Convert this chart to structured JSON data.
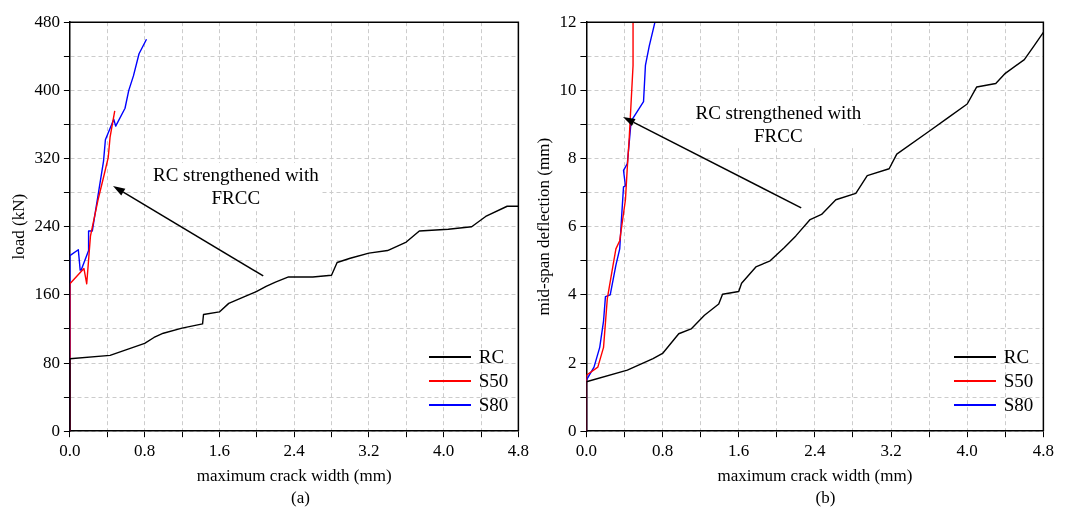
{
  "chart_data": [
    {
      "type": "line",
      "xlabel": "maximum crack width (mm)",
      "ylabel": "load (kN)",
      "annotations": [
        "RC strengthened with FRCC",
        "(a)"
      ],
      "xlim": [
        0,
        4.8
      ],
      "ylim": [
        0,
        480
      ],
      "xticks": [
        {
          "value": 0,
          "label": "0.0"
        },
        {
          "value": 0.4,
          "label": null
        },
        {
          "value": 0.8,
          "label": "0.8"
        },
        {
          "value": 1.2,
          "label": null
        },
        {
          "value": 1.6,
          "label": "1.6"
        },
        {
          "value": 2.0,
          "label": null
        },
        {
          "value": 2.4,
          "label": "2.4"
        },
        {
          "value": 2.8,
          "label": null
        },
        {
          "value": 3.2,
          "label": "3.2"
        },
        {
          "value": 3.6,
          "label": null
        },
        {
          "value": 4.0,
          "label": "4.0"
        },
        {
          "value": 4.4,
          "label": null
        },
        {
          "value": 4.8,
          "label": "4.8"
        }
      ],
      "yticks": [
        0,
        {
          "value": 40,
          "label": null
        },
        80,
        {
          "value": 120,
          "label": null
        },
        160,
        {
          "value": 200,
          "label": null
        },
        240,
        {
          "value": 280,
          "label": null
        },
        320,
        {
          "value": 360,
          "label": null
        },
        400,
        {
          "value": 440,
          "label": null
        },
        480
      ],
      "grid": true,
      "legend": "bottom right",
      "marker": "none",
      "line_style": "solid",
      "series": [
        {
          "name": "RC",
          "color": "#000000",
          "x": [
            0,
            0,
            0.43,
            0.8,
            0.9,
            1.0,
            1.2,
            1.42,
            1.43,
            1.6,
            1.7,
            1.85,
            2.0,
            2.1,
            2.2,
            2.34,
            2.6,
            2.8,
            2.86,
            3.0,
            3.2,
            3.4,
            3.6,
            3.74,
            4.05,
            4.3,
            4.45,
            4.68,
            4.8
          ],
          "values": [
            0,
            85,
            89,
            103,
            110,
            115,
            121,
            126,
            137,
            140,
            150,
            157,
            164,
            170,
            175,
            181,
            181,
            183,
            198,
            203,
            209,
            212,
            222,
            235,
            237,
            240,
            252,
            264,
            264
          ]
        },
        {
          "name": "S50",
          "color": "#ff0000",
          "x": [
            0,
            0,
            0.15,
            0.18,
            0.22,
            0.3,
            0.36,
            0.41,
            0.43,
            0.48
          ],
          "values": [
            0,
            173,
            191,
            173,
            229,
            271,
            298,
            321,
            345,
            376
          ]
        },
        {
          "name": "S80",
          "color": "#0000ff",
          "x": [
            0,
            0,
            0.09,
            0.11,
            0.12,
            0.2,
            0.2,
            0.24,
            0.36,
            0.38,
            0.47,
            0.49,
            0.59,
            0.63,
            0.68,
            0.74,
            0.82
          ],
          "values": [
            0,
            206,
            213,
            189,
            189,
            212,
            235,
            235,
            317,
            342,
            366,
            358,
            379,
            400,
            417,
            443,
            460
          ]
        }
      ]
    },
    {
      "type": "line",
      "xlabel": "maximum crack width (mm)",
      "ylabel": "mid-span deflection (mm)",
      "annotations": [
        "RC strengthened with FRCC",
        "(b)"
      ],
      "xlim": [
        0,
        4.8
      ],
      "ylim": [
        0,
        12
      ],
      "xticks": [
        {
          "value": 0,
          "label": "0.0"
        },
        {
          "value": 0.4,
          "label": null
        },
        {
          "value": 0.8,
          "label": "0.8"
        },
        {
          "value": 1.2,
          "label": null
        },
        {
          "value": 1.6,
          "label": "1.6"
        },
        {
          "value": 2.0,
          "label": null
        },
        {
          "value": 2.4,
          "label": "2.4"
        },
        {
          "value": 2.8,
          "label": null
        },
        {
          "value": 3.2,
          "label": "3.2"
        },
        {
          "value": 3.6,
          "label": null
        },
        {
          "value": 4.0,
          "label": "4.0"
        },
        {
          "value": 4.4,
          "label": null
        },
        {
          "value": 4.8,
          "label": "4.8"
        }
      ],
      "yticks": [
        0,
        {
          "value": 1,
          "label": null
        },
        2,
        {
          "value": 3,
          "label": null
        },
        4,
        {
          "value": 5,
          "label": null
        },
        6,
        {
          "value": 7,
          "label": null
        },
        8,
        {
          "value": 9,
          "label": null
        },
        10,
        {
          "value": 11,
          "label": null
        },
        12
      ],
      "grid": true,
      "legend": "bottom right",
      "marker": "none",
      "line_style": "solid",
      "series": [
        {
          "name": "RC",
          "color": "#000000",
          "x": [
            0,
            0,
            0.43,
            0.7,
            0.8,
            0.97,
            1.1,
            1.24,
            1.39,
            1.43,
            1.6,
            1.63,
            1.78,
            1.93,
            2.08,
            2.2,
            2.35,
            2.47,
            2.62,
            2.83,
            2.95,
            3.18,
            3.26,
            3.6,
            3.8,
            4.0,
            4.1,
            4.3,
            4.4,
            4.6,
            4.7,
            4.8
          ],
          "values": [
            0,
            1.45,
            1.79,
            2.13,
            2.28,
            2.86,
            3.0,
            3.4,
            3.73,
            4.02,
            4.1,
            4.34,
            4.82,
            5.0,
            5.39,
            5.73,
            6.21,
            6.36,
            6.79,
            6.98,
            7.5,
            7.7,
            8.13,
            8.8,
            9.2,
            9.6,
            10.1,
            10.2,
            10.5,
            10.9,
            11.3,
            11.7
          ]
        },
        {
          "name": "S50",
          "color": "#ff0000",
          "x": [
            0,
            0,
            0.12,
            0.18,
            0.22,
            0.28,
            0.31,
            0.35,
            0.41,
            0.43,
            0.45,
            0.49,
            0.49
          ],
          "values": [
            0,
            1.64,
            1.88,
            2.46,
            3.9,
            4.87,
            5.35,
            5.59,
            6.79,
            7.75,
            8.61,
            10.73,
            12
          ]
        },
        {
          "name": "S80",
          "color": "#0000ff",
          "x": [
            0,
            0,
            0.08,
            0.14,
            0.18,
            0.2,
            0.25,
            0.31,
            0.35,
            0.37,
            0.39,
            0.41,
            0.39,
            0.43,
            0.47,
            0.6,
            0.62,
            0.66,
            0.72
          ],
          "values": [
            0,
            1.5,
            1.88,
            2.46,
            3.23,
            3.95,
            4.0,
            4.87,
            5.35,
            6.3,
            7.17,
            7.2,
            7.65,
            7.85,
            9.1,
            9.67,
            10.73,
            11.3,
            12
          ]
        }
      ]
    }
  ]
}
